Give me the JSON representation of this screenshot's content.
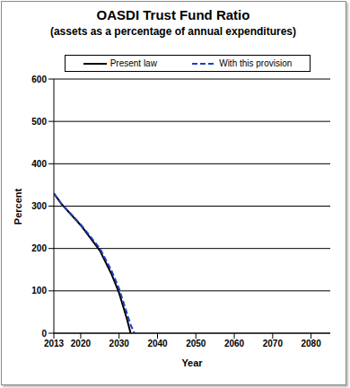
{
  "chart_data": {
    "type": "line",
    "title": "OASDI Trust Fund Ratio",
    "subtitle": "(assets as a percentage of annual expenditures)",
    "x_label": "Year",
    "y_label": "Percent",
    "x": [
      2013,
      2015,
      2020,
      2025,
      2028,
      2030,
      2032,
      2033,
      2034
    ],
    "xlim": [
      2013,
      2085
    ],
    "xticks": [
      2013,
      2020,
      2030,
      2040,
      2050,
      2060,
      2070,
      2080
    ],
    "ylim": [
      0,
      600
    ],
    "yticks": [
      0,
      100,
      200,
      300,
      400,
      500,
      600
    ],
    "grid": true,
    "series": [
      {
        "name": "Present law",
        "color": "#000000",
        "line_style": "solid",
        "values": [
          330,
          305,
          255,
          195,
          140,
          95,
          35,
          0,
          null
        ]
      },
      {
        "name": "With this provision",
        "color": "#1f3fbf",
        "line_style": "dashed",
        "values": [
          330,
          305,
          257,
          200,
          148,
          105,
          48,
          20,
          0
        ]
      }
    ]
  }
}
